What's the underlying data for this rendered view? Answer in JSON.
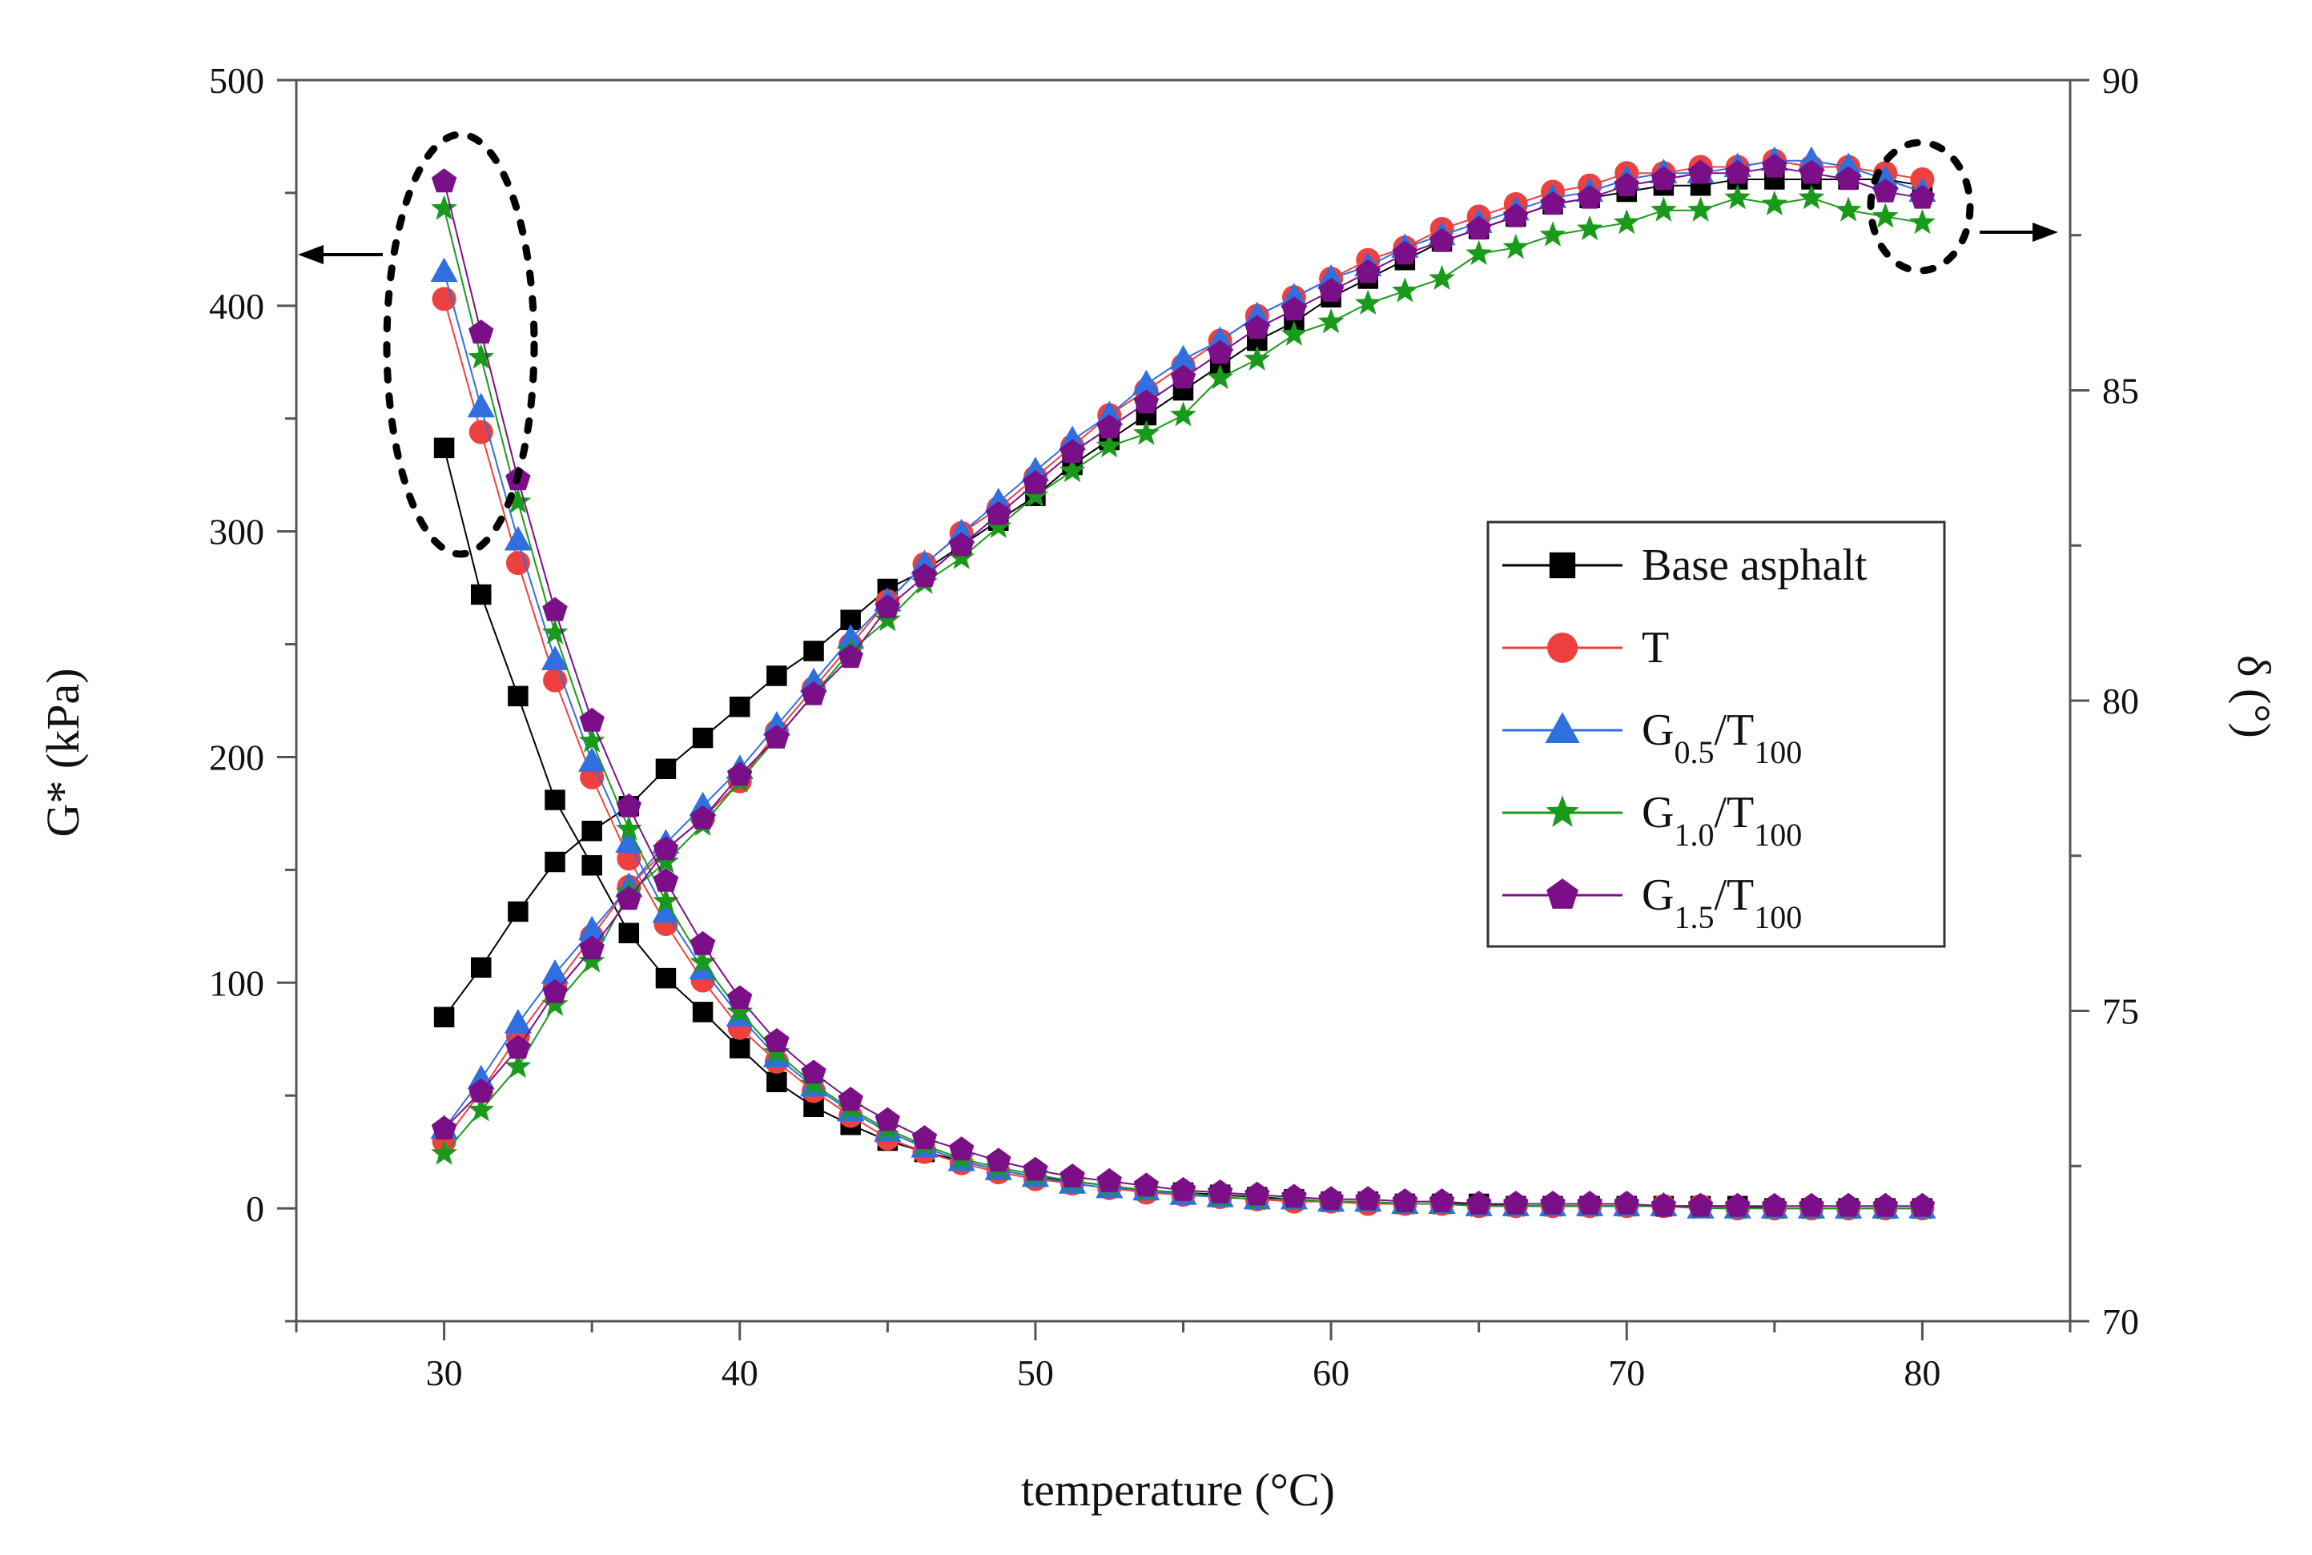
{
  "chart_data": {
    "type": "scatter",
    "xlabel": "temperature (°C)",
    "ylabel_left": "G* (kPa)",
    "ylabel_right": "δ (°)",
    "xlim": [
      25,
      85
    ],
    "ylim_left": [
      -50,
      500
    ],
    "ylim_right": [
      70,
      90
    ],
    "x_ticks": [
      "30",
      "40",
      "50",
      "60",
      "70",
      "80"
    ],
    "y_left_ticks": [
      "0",
      "100",
      "200",
      "300",
      "400",
      "500"
    ],
    "y_right_ticks": [
      "70",
      "75",
      "80",
      "85",
      "90"
    ],
    "grid": false,
    "legend_position": "right-middle",
    "annotations": [
      {
        "kind": "dashed-ellipse-with-arrow",
        "points_to": "left axis (G*)"
      },
      {
        "kind": "dashed-ellipse-with-arrow",
        "points_to": "right axis (δ)"
      }
    ],
    "x": [
      30.0,
      31.25,
      32.5,
      33.75,
      35.0,
      36.25,
      37.5,
      38.75,
      40.0,
      41.25,
      42.5,
      43.75,
      45.0,
      46.25,
      47.5,
      48.75,
      50.0,
      51.25,
      52.5,
      53.75,
      55.0,
      56.25,
      57.5,
      58.75,
      60.0,
      61.25,
      62.5,
      63.75,
      65.0,
      66.25,
      67.5,
      68.75,
      70.0,
      71.25,
      72.5,
      73.75,
      75.0,
      76.25,
      77.5,
      78.75,
      80.0
    ],
    "series": [
      {
        "name": "Base asphalt",
        "legend_main": "Base asphalt",
        "legend_sub1": "",
        "legend_mid": "",
        "legend_sub2": "",
        "color": "#000000",
        "marker": "square",
        "g_star": [
          337,
          272,
          227,
          181,
          152,
          122,
          102,
          87,
          71,
          56,
          45,
          37,
          30,
          25,
          21,
          17,
          14,
          12,
          10,
          8,
          7,
          6,
          5,
          4,
          3,
          3,
          2,
          2,
          2,
          1,
          1,
          1,
          1,
          1,
          1,
          1,
          0,
          0,
          0,
          0,
          0
        ],
        "delta": [
          74.9,
          75.7,
          76.6,
          77.4,
          77.9,
          78.3,
          78.9,
          79.4,
          79.9,
          80.4,
          80.8,
          81.3,
          81.8,
          82.1,
          82.5,
          82.9,
          83.3,
          83.8,
          84.2,
          84.6,
          85.0,
          85.4,
          85.8,
          86.1,
          86.5,
          86.8,
          87.1,
          87.4,
          87.6,
          87.8,
          88.0,
          88.1,
          88.2,
          88.3,
          88.3,
          88.4,
          88.4,
          88.4,
          88.4,
          88.4,
          88.3
        ]
      },
      {
        "name": "T",
        "legend_main": "T",
        "legend_sub1": "",
        "legend_mid": "",
        "legend_sub2": "",
        "color": "#ef4040",
        "marker": "circle",
        "g_star": [
          403,
          344,
          286,
          234,
          191,
          155,
          126,
          101,
          80,
          65,
          52,
          41,
          31,
          25,
          20,
          16,
          13,
          11,
          9,
          7,
          6,
          5,
          4,
          3,
          3,
          2,
          2,
          2,
          1,
          1,
          1,
          1,
          1,
          1,
          1,
          0,
          0,
          0,
          0,
          0,
          0
        ],
        "delta": [
          72.9,
          73.7,
          74.6,
          75.4,
          76.2,
          77.0,
          77.6,
          78.1,
          78.7,
          79.5,
          80.2,
          80.9,
          81.6,
          82.2,
          82.7,
          83.1,
          83.6,
          84.1,
          84.6,
          85.0,
          85.4,
          85.8,
          86.2,
          86.5,
          86.8,
          87.1,
          87.3,
          87.6,
          87.8,
          88.0,
          88.2,
          88.3,
          88.5,
          88.5,
          88.6,
          88.6,
          88.7,
          88.6,
          88.6,
          88.5,
          88.4
        ]
      },
      {
        "name": "G0.5/T100",
        "legend_main": "G",
        "legend_sub1": "0.5",
        "legend_mid": "/T",
        "legend_sub2": "100",
        "color": "#2f6fdf",
        "marker": "triangle",
        "g_star": [
          415,
          355,
          296,
          243,
          198,
          162,
          131,
          106,
          85,
          67,
          54,
          43,
          34,
          27,
          21,
          17,
          14,
          11,
          9,
          8,
          6,
          5,
          4,
          4,
          3,
          3,
          2,
          2,
          1,
          1,
          1,
          1,
          1,
          1,
          0,
          0,
          0,
          0,
          0,
          0,
          0
        ],
        "delta": [
          73.1,
          73.9,
          74.8,
          75.6,
          76.3,
          77.0,
          77.7,
          78.3,
          78.9,
          79.6,
          80.3,
          81.0,
          81.6,
          82.2,
          82.7,
          83.2,
          83.7,
          84.2,
          84.6,
          85.1,
          85.5,
          85.8,
          86.2,
          86.5,
          86.8,
          87.0,
          87.3,
          87.5,
          87.7,
          87.9,
          88.1,
          88.2,
          88.4,
          88.5,
          88.5,
          88.6,
          88.7,
          88.7,
          88.6,
          88.4,
          88.2
        ]
      },
      {
        "name": "G1.0/T100",
        "legend_main": "G",
        "legend_sub1": "1.0",
        "legend_mid": "/T",
        "legend_sub2": "100",
        "color": "#1a9a1a",
        "marker": "star",
        "g_star": [
          443,
          377,
          313,
          255,
          207,
          168,
          136,
          109,
          87,
          69,
          55,
          44,
          35,
          28,
          22,
          18,
          15,
          12,
          10,
          8,
          7,
          5,
          4,
          4,
          3,
          3,
          2,
          2,
          1,
          1,
          1,
          1,
          1,
          1,
          0,
          0,
          0,
          0,
          0,
          0,
          0
        ],
        "delta": [
          72.7,
          73.4,
          74.1,
          75.1,
          75.8,
          76.9,
          77.4,
          78.0,
          78.7,
          79.4,
          80.1,
          80.8,
          81.3,
          81.9,
          82.3,
          82.8,
          83.3,
          83.7,
          84.1,
          84.3,
          84.6,
          85.2,
          85.5,
          85.9,
          86.1,
          86.4,
          86.6,
          86.8,
          87.2,
          87.3,
          87.5,
          87.6,
          87.7,
          87.9,
          87.9,
          88.1,
          88.0,
          88.1,
          87.9,
          87.8,
          87.7
        ]
      },
      {
        "name": "G1.5/T100",
        "legend_main": "G",
        "legend_sub1": "1.5",
        "legend_mid": "/T",
        "legend_sub2": "100",
        "color": "#7a0f87",
        "marker": "pentagon",
        "g_star": [
          455,
          388,
          323,
          265,
          216,
          178,
          145,
          117,
          93,
          74,
          60,
          48,
          39,
          31,
          26,
          21,
          17,
          14,
          12,
          10,
          8,
          7,
          6,
          5,
          4,
          4,
          3,
          3,
          2,
          2,
          2,
          2,
          2,
          1,
          1,
          1,
          1,
          1,
          1,
          1,
          1
        ],
        "delta": [
          73.1,
          73.7,
          74.4,
          75.3,
          76.0,
          76.8,
          77.6,
          78.1,
          78.8,
          79.4,
          80.1,
          80.7,
          81.5,
          82.0,
          82.5,
          83.0,
          83.5,
          84.0,
          84.4,
          84.8,
          85.2,
          85.6,
          86.0,
          86.3,
          86.6,
          86.9,
          87.2,
          87.4,
          87.6,
          87.8,
          88.0,
          88.1,
          88.3,
          88.4,
          88.5,
          88.5,
          88.6,
          88.5,
          88.4,
          88.2,
          88.1
        ]
      }
    ]
  }
}
